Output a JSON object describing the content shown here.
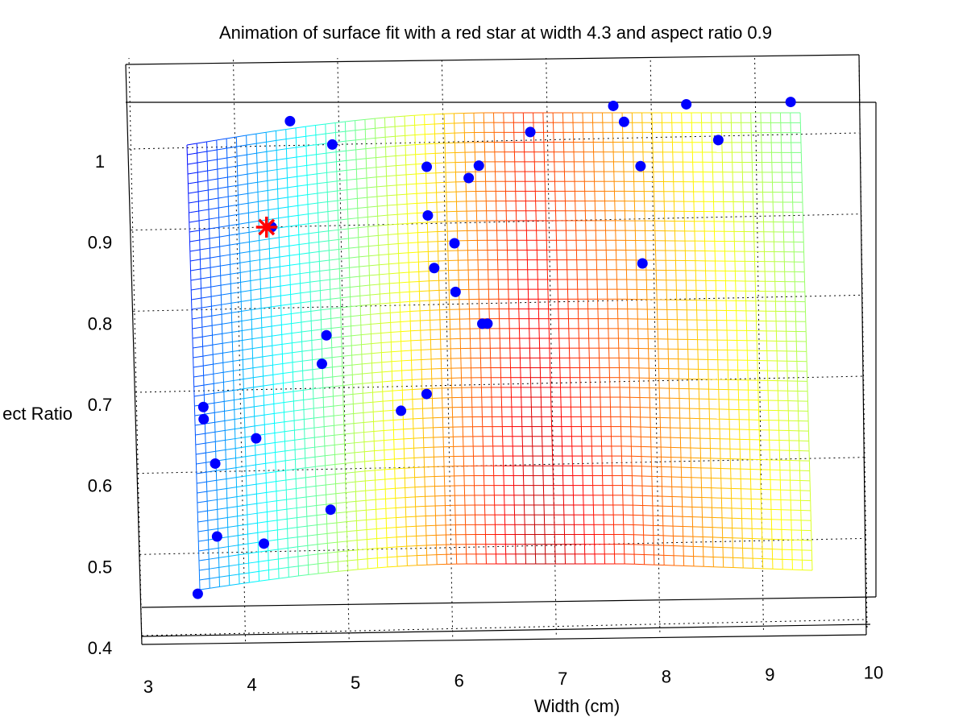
{
  "chart_data": {
    "type": "scatter",
    "title": "Animation of surface fit with a red star at width 4.3 and aspect ratio 0.9",
    "xlabel": "Width (cm)",
    "ylabel": "ect Ratio",
    "x_ticks": [
      "3",
      "4",
      "5",
      "6",
      "7",
      "8",
      "9",
      "10"
    ],
    "y_ticks": [
      "0.4",
      "0.5",
      "0.6",
      "0.7",
      "0.8",
      "0.9",
      "1"
    ],
    "xlim": [
      3,
      10
    ],
    "ylim": [
      0.4,
      1.05
    ],
    "grid": true,
    "legend": "none",
    "surface": {
      "type": "mesh",
      "colormap": "jet",
      "x_range": [
        3.4,
        9.5
      ],
      "y_range": [
        0.45,
        1.0
      ]
    },
    "series": [
      {
        "color": "#0000ff",
        "marker": "circle",
        "points": [
          [
            3.55,
            0.45
          ],
          [
            3.65,
            0.68
          ],
          [
            3.65,
            0.665
          ],
          [
            3.75,
            0.61
          ],
          [
            3.75,
            0.52
          ],
          [
            4.15,
            0.64
          ],
          [
            4.2,
            0.51
          ],
          [
            4.35,
            0.9
          ],
          [
            4.55,
            1.03
          ],
          [
            4.8,
            0.73
          ],
          [
            4.85,
            0.765
          ],
          [
            4.85,
            0.55
          ],
          [
            4.95,
            1.0
          ],
          [
            5.55,
            0.67
          ],
          [
            5.8,
            0.69
          ],
          [
            5.85,
            0.97
          ],
          [
            5.85,
            0.91
          ],
          [
            5.9,
            0.845
          ],
          [
            6.1,
            0.815
          ],
          [
            6.1,
            0.875
          ],
          [
            6.25,
            0.955
          ],
          [
            6.35,
            0.97
          ],
          [
            6.35,
            0.775
          ],
          [
            6.4,
            0.775
          ],
          [
            6.85,
            1.01
          ],
          [
            7.65,
            1.04
          ],
          [
            7.75,
            1.02
          ],
          [
            7.9,
            0.965
          ],
          [
            7.9,
            0.845
          ],
          [
            8.35,
            1.04
          ],
          [
            8.65,
            0.995
          ],
          [
            9.35,
            1.04
          ]
        ]
      },
      {
        "color": "#ff0000",
        "marker": "star",
        "points": [
          [
            4.3,
            0.9
          ]
        ]
      }
    ]
  }
}
